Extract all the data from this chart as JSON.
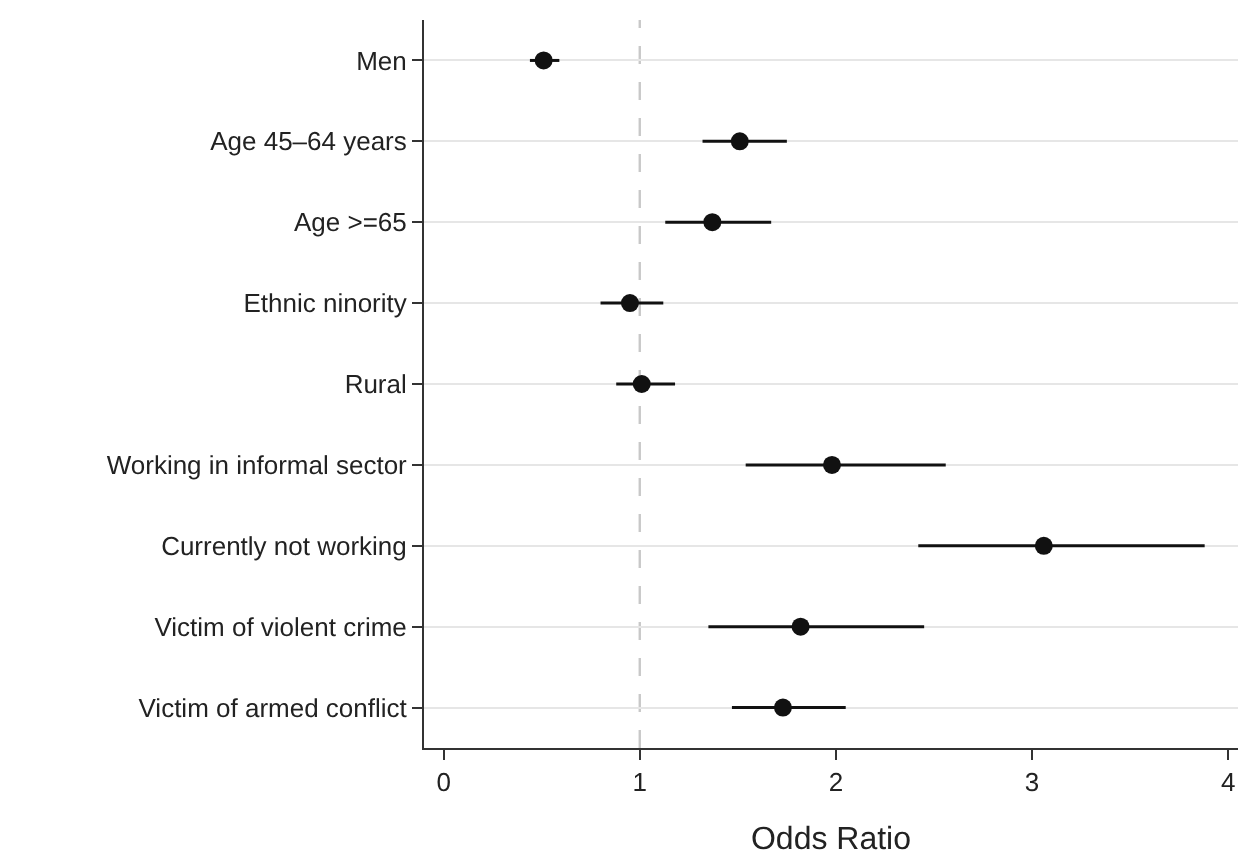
{
  "chart_data": {
    "type": "scatter",
    "orientation": "horizontal",
    "xlabel": "Odds Ratio",
    "categories": [
      "Men",
      "Age 45–64 years",
      "Age >=65",
      "Ethnic ninority",
      "Rural",
      "Working in informal sector",
      "Currently not working",
      "Victim of violent crime",
      "Victim of armed conflict"
    ],
    "series": [
      {
        "color": "#111111",
        "values": [
          0.51,
          1.51,
          1.37,
          0.95,
          1.01,
          1.98,
          3.06,
          1.82,
          1.73
        ],
        "errors": [
          [
            0.44,
            0.59
          ],
          [
            1.32,
            1.75
          ],
          [
            1.13,
            1.67
          ],
          [
            0.8,
            1.12
          ],
          [
            0.88,
            1.18
          ],
          [
            1.54,
            2.56
          ],
          [
            2.42,
            3.88
          ],
          [
            1.35,
            2.45
          ],
          [
            1.47,
            2.05
          ]
        ]
      }
    ],
    "xlim": [
      -0.1,
      4.05
    ],
    "xticks": [
      0,
      1,
      2,
      3,
      4
    ],
    "ref_lines": [
      {
        "axis": "x",
        "value": 1,
        "color": "#c8c8c8",
        "line_style": "dashed"
      }
    ],
    "grid": "y",
    "legend": false,
    "marker": "circle"
  }
}
